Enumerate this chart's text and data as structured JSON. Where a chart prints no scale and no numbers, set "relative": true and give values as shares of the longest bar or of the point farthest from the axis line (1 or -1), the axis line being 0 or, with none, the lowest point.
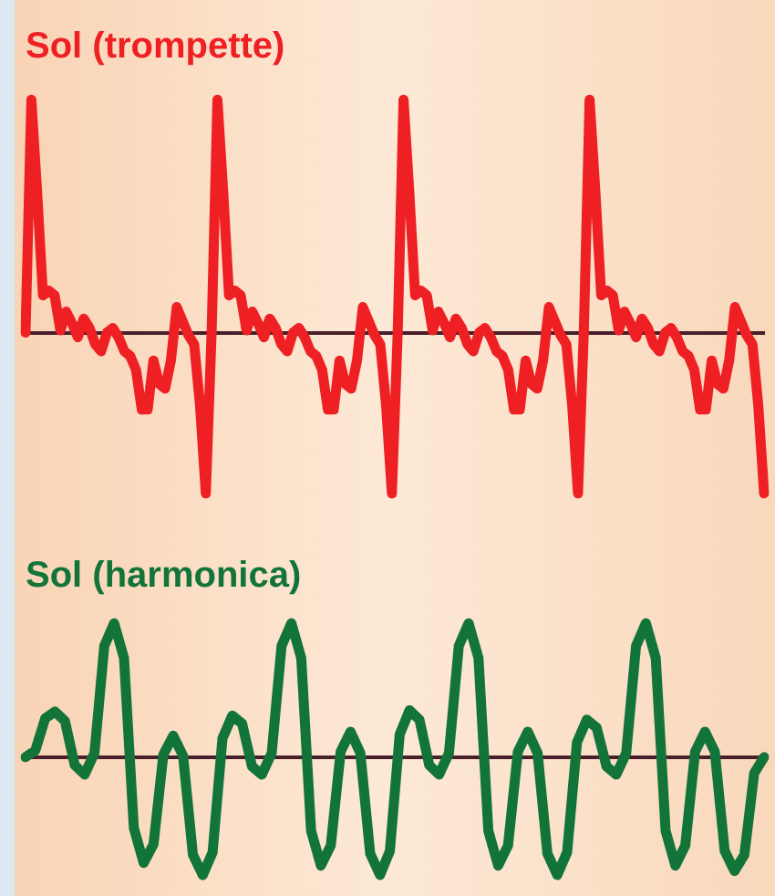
{
  "chart_data": [
    {
      "type": "line",
      "title": "Sol (trompette)",
      "relative": true,
      "marker": "none",
      "line_style": "solid",
      "categories": [
        null,
        null,
        null,
        null,
        null,
        null,
        null,
        null,
        null,
        null,
        null,
        null,
        null,
        null,
        null,
        null,
        null,
        null,
        null,
        null,
        null,
        null,
        null,
        null,
        null,
        null,
        null,
        null,
        null,
        null,
        null,
        null,
        null,
        null,
        null,
        null,
        null,
        null,
        null,
        null,
        null,
        null,
        null,
        null,
        null,
        null,
        null,
        null,
        null,
        null,
        null,
        null,
        null,
        null,
        null,
        null,
        null,
        null,
        null,
        null,
        null,
        null,
        null,
        null,
        null,
        null,
        null,
        null,
        null,
        null,
        null,
        null,
        null,
        null,
        null,
        null,
        null,
        null,
        null,
        null,
        null,
        null,
        null,
        null,
        null,
        null,
        null,
        null,
        null,
        null,
        null,
        null,
        null,
        null,
        null,
        null,
        null,
        null,
        null,
        null,
        null,
        null,
        null,
        null,
        null,
        null,
        null,
        null,
        null,
        null,
        null,
        null,
        null,
        null,
        null,
        null,
        null,
        null,
        null,
        null,
        null,
        null,
        null,
        null,
        null,
        null,
        null,
        null
      ],
      "series": [
        {
          "color": "#ee2024",
          "values": [
            0,
            1.0,
            0.6,
            0.16,
            0.18,
            0.16,
            0.01,
            0.09,
            0.04,
            -0.02,
            0.06,
            0.02,
            -0.05,
            -0.08,
            0,
            0.02,
            -0.02,
            -0.08,
            -0.1,
            -0.16,
            -0.33,
            -0.33,
            -0.12,
            -0.22,
            -0.24,
            -0.12,
            0.11,
            0.05,
            -0.01,
            -0.05,
            -0.31,
            -0.69,
            0,
            1.0,
            0.6,
            0.16,
            0.18,
            0.16,
            0.01,
            0.09,
            0.04,
            -0.02,
            0.06,
            0.02,
            -0.05,
            -0.08,
            0,
            0.02,
            -0.02,
            -0.08,
            -0.1,
            -0.16,
            -0.33,
            -0.33,
            -0.12,
            -0.22,
            -0.24,
            -0.12,
            0.11,
            0.05,
            -0.01,
            -0.05,
            -0.31,
            -0.69,
            0,
            1.0,
            0.6,
            0.16,
            0.18,
            0.16,
            0.01,
            0.09,
            0.04,
            -0.02,
            0.06,
            0.02,
            -0.05,
            -0.08,
            0,
            0.02,
            -0.02,
            -0.08,
            -0.1,
            -0.16,
            -0.33,
            -0.33,
            -0.12,
            -0.22,
            -0.24,
            -0.12,
            0.11,
            0.05,
            -0.01,
            -0.05,
            -0.31,
            -0.69,
            0,
            1.0,
            0.6,
            0.16,
            0.18,
            0.16,
            0.01,
            0.09,
            0.04,
            -0.02,
            0.06,
            0.02,
            -0.05,
            -0.08,
            0,
            0.02,
            -0.02,
            -0.08,
            -0.1,
            -0.16,
            -0.33,
            -0.33,
            -0.12,
            -0.22,
            -0.24,
            -0.12,
            0.11,
            0.05,
            -0.01,
            -0.05,
            -0.31,
            -0.69
          ]
        }
      ]
    },
    {
      "type": "line",
      "title": "Sol (harmonica)",
      "relative": true,
      "marker": "none",
      "line_style": "solid",
      "categories": [
        null,
        null,
        null,
        null,
        null,
        null,
        null,
        null,
        null,
        null,
        null,
        null,
        null,
        null,
        null,
        null,
        null,
        null,
        null,
        null,
        null,
        null,
        null,
        null,
        null,
        null,
        null,
        null,
        null,
        null,
        null,
        null,
        null,
        null,
        null,
        null,
        null,
        null,
        null,
        null,
        null,
        null,
        null,
        null,
        null,
        null,
        null,
        null,
        null,
        null,
        null,
        null,
        null,
        null,
        null,
        null,
        null,
        null,
        null,
        null,
        null,
        null,
        null,
        null,
        null,
        null,
        null,
        null,
        null,
        null,
        null,
        null,
        null,
        null,
        null,
        null
      ],
      "series": [
        {
          "color": "#13743a",
          "values": [
            0,
            0.05,
            0.29,
            0.34,
            0.27,
            -0.06,
            -0.13,
            0.03,
            0.83,
            1,
            0.74,
            -0.53,
            -0.79,
            -0.65,
            0.02,
            0.16,
            0.01,
            -0.73,
            -0.88,
            -0.71,
            0.14,
            0.31,
            0.25,
            -0.07,
            -0.13,
            0.03,
            0.83,
            1,
            0.74,
            -0.55,
            -0.81,
            -0.66,
            0.04,
            0.19,
            0.03,
            -0.72,
            -0.88,
            -0.7,
            0.17,
            0.35,
            0.28,
            -0.06,
            -0.13,
            0.03,
            0.83,
            1,
            0.74,
            -0.55,
            -0.81,
            -0.66,
            0.04,
            0.19,
            0.03,
            -0.72,
            -0.88,
            -0.71,
            0.11,
            0.28,
            0.22,
            -0.07,
            -0.13,
            0.03,
            0.83,
            1,
            0.74,
            -0.55,
            -0.81,
            -0.66,
            0.04,
            0.19,
            0.04,
            -0.7,
            -0.85,
            -0.73,
            -0.12,
            0
          ]
        }
      ]
    }
  ]
}
